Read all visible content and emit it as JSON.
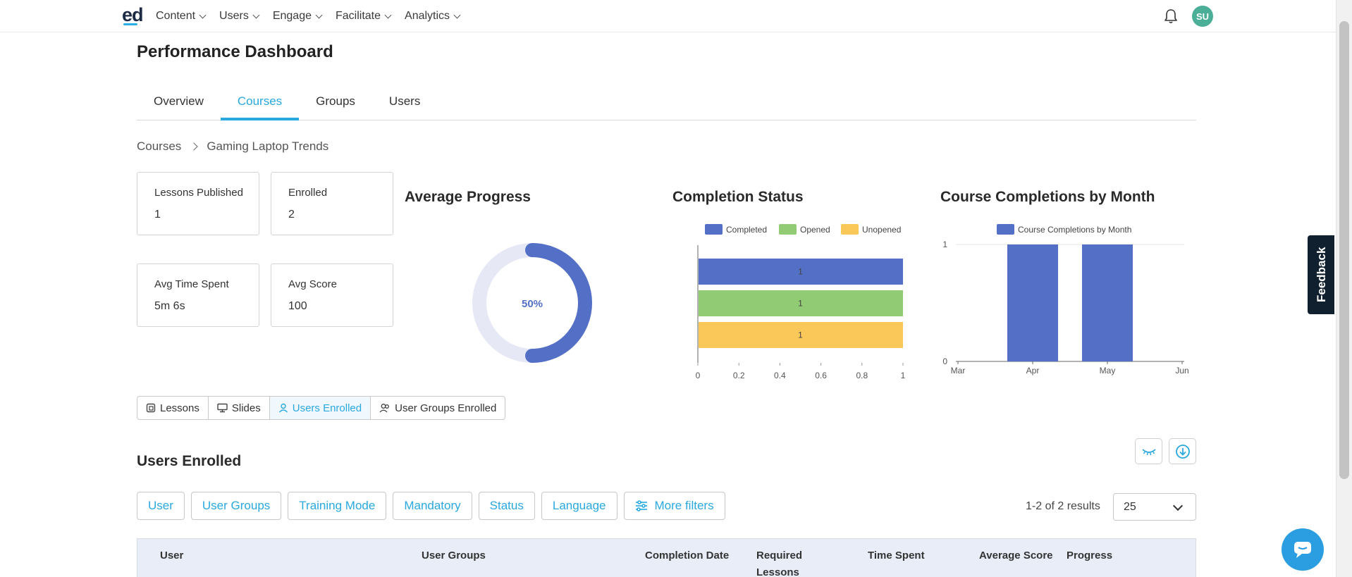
{
  "nav": {
    "logo": "ed",
    "items": [
      {
        "label": "Content"
      },
      {
        "label": "Users"
      },
      {
        "label": "Engage"
      },
      {
        "label": "Facilitate"
      },
      {
        "label": "Analytics"
      }
    ],
    "avatar_initials": "SU"
  },
  "page": {
    "title": "Performance Dashboard",
    "tabs": [
      "Overview",
      "Courses",
      "Groups",
      "Users"
    ],
    "active_tab": "Courses"
  },
  "breadcrumb": {
    "root": "Courses",
    "current": "Gaming Laptop Trends"
  },
  "stats": {
    "lessons_published": {
      "label": "Lessons Published",
      "value": "1"
    },
    "enrolled": {
      "label": "Enrolled",
      "value": "2"
    },
    "avg_time_spent": {
      "label": "Avg Time Spent",
      "value": "5m 6s"
    },
    "avg_score": {
      "label": "Avg Score",
      "value": "100"
    }
  },
  "colors": {
    "accent": "#29a8de",
    "completed": "#5470c6",
    "opened": "#91cc75",
    "unopened": "#fac858",
    "donut_track": "#e6e9f5"
  },
  "chart_data": [
    {
      "type": "donut",
      "title": "Average Progress",
      "value": 50,
      "label": "50%"
    },
    {
      "type": "bar",
      "orientation": "horizontal",
      "title": "Completion Status",
      "series": [
        {
          "name": "Completed",
          "values": [
            1
          ]
        },
        {
          "name": "Opened",
          "values": [
            1
          ]
        },
        {
          "name": "Unopened",
          "values": [
            1
          ]
        }
      ],
      "xlim": [
        0,
        1
      ],
      "xticks": [
        "0",
        "0.2",
        "0.4",
        "0.6",
        "0.8",
        "1"
      ],
      "data_labels": [
        "1",
        "1",
        "1"
      ],
      "legend": "top"
    },
    {
      "type": "bar",
      "title": "Course Completions by Month",
      "categories": [
        "Mar",
        "Apr",
        "May",
        "Jun"
      ],
      "series": [
        {
          "name": "Course Completions by Month",
          "values": [
            0,
            1,
            1,
            0
          ]
        }
      ],
      "ylim": [
        0,
        1
      ],
      "yticks": [
        "0",
        "1"
      ],
      "legend": "top"
    }
  ],
  "subtabs": [
    {
      "label": "Lessons",
      "icon": "lessons-icon"
    },
    {
      "label": "Slides",
      "icon": "slides-icon"
    },
    {
      "label": "Users Enrolled",
      "icon": "user-icon"
    },
    {
      "label": "User Groups Enrolled",
      "icon": "user-group-icon"
    }
  ],
  "active_subtab": "Users Enrolled",
  "section_title": "Users Enrolled",
  "filters": [
    "User",
    "User Groups",
    "Training Mode",
    "Mandatory",
    "Status",
    "Language"
  ],
  "more_filters": "More filters",
  "results_text": "1-2 of 2 results",
  "page_size": "25",
  "table_headers": [
    "User",
    "User Groups",
    "Completion Date",
    "Required Lessons Completed",
    "Time Spent",
    "Average Score",
    "Progress"
  ],
  "feedback_label": "Feedback"
}
